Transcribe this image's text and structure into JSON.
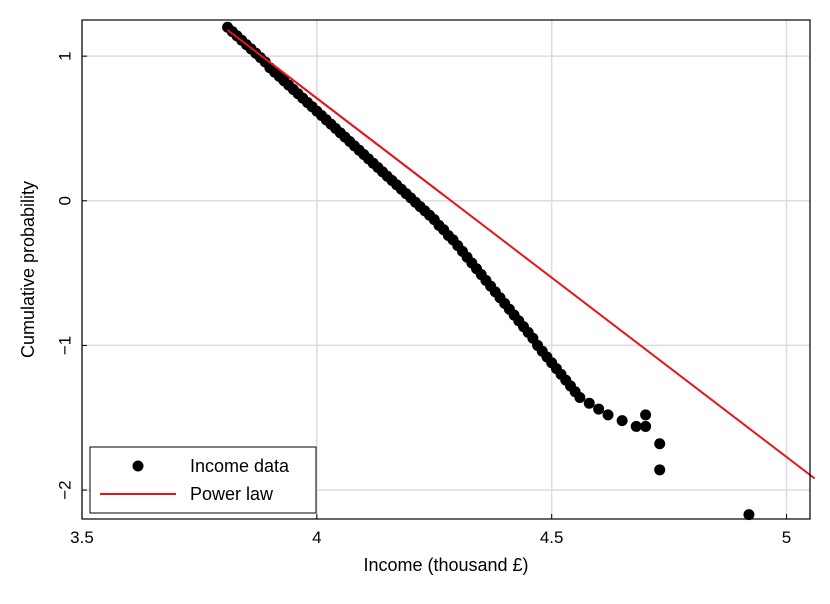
{
  "chart_data": {
    "type": "scatter",
    "xlabel": "Income (thousand £)",
    "ylabel": "Cumulative probability",
    "xlim": [
      3.5,
      5.05
    ],
    "ylim": [
      -2.2,
      1.25
    ],
    "grid": true,
    "legend_position": "bottom-left",
    "x_ticks": [
      {
        "value": 3.5,
        "label": "3.5"
      },
      {
        "value": 4.0,
        "label": "4"
      },
      {
        "value": 4.5,
        "label": "4.5"
      },
      {
        "value": 5.0,
        "label": "5"
      }
    ],
    "y_ticks": [
      {
        "value": 1,
        "label": "1"
      },
      {
        "value": 0,
        "label": "0"
      },
      {
        "value": -1,
        "label": "−1"
      },
      {
        "value": -2,
        "label": "−2"
      }
    ],
    "series": [
      {
        "name": "Income data",
        "kind": "scatter",
        "color": "#000000",
        "x": [
          3.81,
          3.82,
          3.83,
          3.84,
          3.85,
          3.86,
          3.87,
          3.88,
          3.89,
          3.9,
          3.91,
          3.92,
          3.93,
          3.94,
          3.95,
          3.96,
          3.97,
          3.98,
          3.99,
          4.0,
          4.01,
          4.02,
          4.03,
          4.04,
          4.05,
          4.06,
          4.07,
          4.08,
          4.09,
          4.1,
          4.11,
          4.12,
          4.13,
          4.14,
          4.15,
          4.16,
          4.17,
          4.18,
          4.19,
          4.2,
          4.21,
          4.22,
          4.23,
          4.24,
          4.25,
          4.26,
          4.27,
          4.28,
          4.29,
          4.3,
          4.31,
          4.32,
          4.33,
          4.34,
          4.35,
          4.36,
          4.37,
          4.38,
          4.39,
          4.4,
          4.41,
          4.42,
          4.43,
          4.44,
          4.45,
          4.46,
          4.47,
          4.48,
          4.49,
          4.5,
          4.51,
          4.52,
          4.53,
          4.54,
          4.55,
          4.56,
          4.58,
          4.6,
          4.62,
          4.65,
          4.68,
          4.7,
          4.7,
          4.73,
          4.73,
          4.92
        ],
        "y": [
          1.2,
          1.17,
          1.14,
          1.11,
          1.08,
          1.05,
          1.02,
          0.99,
          0.96,
          0.92,
          0.89,
          0.86,
          0.83,
          0.8,
          0.77,
          0.74,
          0.71,
          0.68,
          0.65,
          0.62,
          0.59,
          0.56,
          0.53,
          0.5,
          0.47,
          0.44,
          0.41,
          0.38,
          0.35,
          0.32,
          0.29,
          0.26,
          0.23,
          0.2,
          0.17,
          0.14,
          0.11,
          0.08,
          0.05,
          0.02,
          -0.01,
          -0.04,
          -0.07,
          -0.1,
          -0.13,
          -0.17,
          -0.2,
          -0.24,
          -0.27,
          -0.31,
          -0.35,
          -0.39,
          -0.43,
          -0.47,
          -0.51,
          -0.55,
          -0.59,
          -0.63,
          -0.67,
          -0.71,
          -0.75,
          -0.79,
          -0.83,
          -0.87,
          -0.91,
          -0.95,
          -1.0,
          -1.04,
          -1.08,
          -1.12,
          -1.16,
          -1.2,
          -1.24,
          -1.28,
          -1.32,
          -1.36,
          -1.4,
          -1.44,
          -1.48,
          -1.52,
          -1.56,
          -1.48,
          -1.56,
          -1.68,
          -1.86,
          -2.17
        ]
      },
      {
        "name": "Power law",
        "kind": "line",
        "color": "#e8141b",
        "x": [
          3.81,
          5.06
        ],
        "y": [
          1.18,
          -1.92
        ]
      }
    ]
  }
}
